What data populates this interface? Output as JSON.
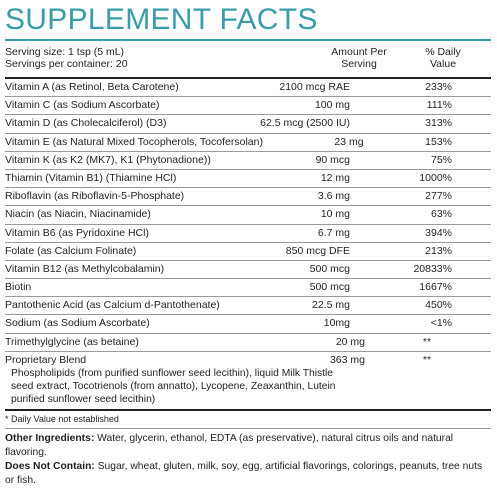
{
  "title": "SUPPLEMENT FACTS",
  "serving": {
    "size": "Serving size: 1 tsp (5 mL)",
    "per_container": "Servings per container: 20"
  },
  "columns": {
    "amount": "Amount Per Serving",
    "daily_value": "% Daily Value"
  },
  "rows": [
    {
      "name": "Vitamin A (as Retinol, Beta Carotene)",
      "amount": "2100 mcg RAE",
      "daily_value": "233%"
    },
    {
      "name": "Vitamin C (as Sodium Ascorbate)",
      "amount": "100 mg",
      "daily_value": "111%"
    },
    {
      "name": "Vitamin D (as Cholecalciferol) (D3)",
      "amount": "62.5 mcg (2500 IU)",
      "daily_value": "313%"
    },
    {
      "name": "Vitamin E (as Natural Mixed Tocopherols, Tocofersolan)",
      "amount": "23 mg",
      "daily_value": "153%"
    },
    {
      "name": "Vitamin K (as K2 (MK7), K1 (Phytonadione))",
      "amount": "90 mcg",
      "daily_value": "75%"
    },
    {
      "name": "Thiamin (Vitamin B1) (Thiamine HCl)",
      "amount": "12 mg",
      "daily_value": "1000%"
    },
    {
      "name": "Riboflavin (as Riboflavin-5-Phosphate)",
      "amount": "3.6 mg",
      "daily_value": "277%"
    },
    {
      "name": "Niacin (as Niacin, Niacinamide)",
      "amount": "10 mg",
      "daily_value": "63%"
    },
    {
      "name": "Vitamin B6 (as Pyridoxine HCl)",
      "amount": "6.7 mg",
      "daily_value": "394%"
    },
    {
      "name": "Folate (as Calcium Folinate)",
      "amount": "850 mcg DFE",
      "daily_value": "213%"
    },
    {
      "name": "Vitamin B12 (as Methylcobalamin)",
      "amount": "500 mcg",
      "daily_value": "20833%"
    },
    {
      "name": "Biotin",
      "amount": "500 mcg",
      "daily_value": "1667%"
    },
    {
      "name": "Pantothenic Acid (as Calcium d-Pantothenate)",
      "amount": "22.5 mg",
      "daily_value": "450%"
    },
    {
      "name": "Sodium (as Sodium Ascorbate)",
      "amount": "10mg",
      "daily_value": "<1%"
    },
    {
      "name": "Trimethylglycine (as betaine)",
      "amount": "20 mg",
      "daily_value": "**"
    }
  ],
  "blend": {
    "name": "Proprietary Blend",
    "amount": "363 mg",
    "daily_value": "**",
    "description": "Phospholipids (from purified sunflower seed lecithin), liquid Milk Thistle seed extract, Tocotrienols (from annatto), Lycopene, Zeaxanthin, Lutein purified sunflower seed lecithin)"
  },
  "footnote": "* Daily Value not established",
  "other_ingredients": {
    "label": "Other Ingredients:",
    "text": "Water, glycerin, ethanol, EDTA (as preservative), natural citrus oils and natural flavoring."
  },
  "does_not_contain": {
    "label": "Does Not Contain:",
    "text": "Sugar, wheat, gluten, milk, soy, egg, artificial flavorings, colorings, peanuts, tree nuts or fish."
  }
}
